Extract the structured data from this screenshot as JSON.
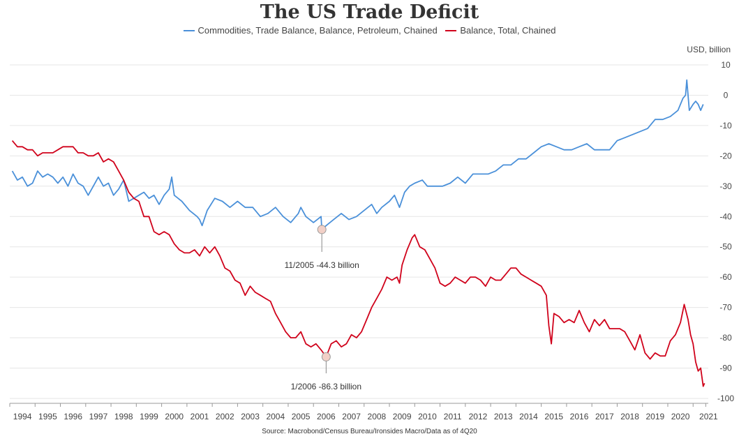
{
  "title": "The US Trade Deficit",
  "unit_label": "USD, billion",
  "source": "Source: Macrobond/Census Bureau/Ironsides Macro/Data as of 4Q20",
  "colors": {
    "petroleum": "#4a90d9",
    "total": "#d0021b",
    "grid": "#e6e6e6",
    "axis": "#999999",
    "marker_fill": "#f2d0c7"
  },
  "chart_data": {
    "type": "line",
    "title": "The US Trade Deficit",
    "ylabel": "USD, billion",
    "ylim": [
      -103,
      10
    ],
    "xlim": [
      1993.5,
      2021.1
    ],
    "grid": true,
    "legend_position": "top-center",
    "y_ticks": [
      "10",
      "0",
      "-10",
      "-20",
      "-30",
      "-40",
      "-50",
      "-60",
      "-70",
      "-80",
      "-90",
      "-100"
    ],
    "x_ticks": [
      "1994",
      "1995",
      "1996",
      "1997",
      "1998",
      "1999",
      "2000",
      "2001",
      "2002",
      "2003",
      "2004",
      "2005",
      "2006",
      "2007",
      "2008",
      "2009",
      "2010",
      "2011",
      "2012",
      "2013",
      "2014",
      "2015",
      "2016",
      "2017",
      "2018",
      "2019",
      "2020",
      "2021"
    ],
    "series": [
      {
        "name": "Commodities, Trade Balance, Balance, Petroleum, Chained",
        "color": "#4a90d9",
        "points": [
          [
            1993.6,
            -25
          ],
          [
            1993.8,
            -28
          ],
          [
            1994.0,
            -27
          ],
          [
            1994.2,
            -30
          ],
          [
            1994.4,
            -29
          ],
          [
            1994.6,
            -25
          ],
          [
            1994.8,
            -27
          ],
          [
            1995.0,
            -26
          ],
          [
            1995.2,
            -27
          ],
          [
            1995.4,
            -29
          ],
          [
            1995.6,
            -27
          ],
          [
            1995.8,
            -30
          ],
          [
            1996.0,
            -26
          ],
          [
            1996.2,
            -29
          ],
          [
            1996.4,
            -30
          ],
          [
            1996.6,
            -33
          ],
          [
            1996.8,
            -30
          ],
          [
            1997.0,
            -27
          ],
          [
            1997.2,
            -30
          ],
          [
            1997.4,
            -29
          ],
          [
            1997.6,
            -33
          ],
          [
            1997.8,
            -31
          ],
          [
            1998.0,
            -28
          ],
          [
            1998.2,
            -35
          ],
          [
            1998.4,
            -34
          ],
          [
            1998.6,
            -33
          ],
          [
            1998.8,
            -32
          ],
          [
            1999.0,
            -34
          ],
          [
            1999.2,
            -33
          ],
          [
            1999.4,
            -36
          ],
          [
            1999.6,
            -33
          ],
          [
            1999.8,
            -31
          ],
          [
            1999.9,
            -27
          ],
          [
            2000.0,
            -33
          ],
          [
            2000.3,
            -35
          ],
          [
            2000.6,
            -38
          ],
          [
            2000.9,
            -40
          ],
          [
            2001.0,
            -41
          ],
          [
            2001.1,
            -43
          ],
          [
            2001.3,
            -38
          ],
          [
            2001.6,
            -34
          ],
          [
            2001.9,
            -35
          ],
          [
            2002.2,
            -37
          ],
          [
            2002.5,
            -35
          ],
          [
            2002.8,
            -37
          ],
          [
            2003.1,
            -37
          ],
          [
            2003.4,
            -40
          ],
          [
            2003.7,
            -39
          ],
          [
            2004.0,
            -37
          ],
          [
            2004.3,
            -40
          ],
          [
            2004.6,
            -42
          ],
          [
            2004.9,
            -39
          ],
          [
            2005.0,
            -37
          ],
          [
            2005.2,
            -40
          ],
          [
            2005.5,
            -42
          ],
          [
            2005.8,
            -40
          ],
          [
            2005.83,
            -44.3
          ],
          [
            2006.0,
            -43
          ],
          [
            2006.3,
            -41
          ],
          [
            2006.6,
            -39
          ],
          [
            2006.9,
            -41
          ],
          [
            2007.2,
            -40
          ],
          [
            2007.5,
            -38
          ],
          [
            2007.8,
            -36
          ],
          [
            2008.0,
            -39
          ],
          [
            2008.2,
            -37
          ],
          [
            2008.5,
            -35
          ],
          [
            2008.7,
            -33
          ],
          [
            2008.9,
            -37
          ],
          [
            2009.1,
            -32
          ],
          [
            2009.3,
            -30
          ],
          [
            2009.5,
            -29
          ],
          [
            2009.8,
            -28
          ],
          [
            2010.0,
            -30
          ],
          [
            2010.3,
            -30
          ],
          [
            2010.6,
            -30
          ],
          [
            2010.9,
            -29
          ],
          [
            2011.2,
            -27
          ],
          [
            2011.5,
            -29
          ],
          [
            2011.8,
            -26
          ],
          [
            2012.1,
            -26
          ],
          [
            2012.4,
            -26
          ],
          [
            2012.7,
            -25
          ],
          [
            2013.0,
            -23
          ],
          [
            2013.3,
            -23
          ],
          [
            2013.6,
            -21
          ],
          [
            2013.9,
            -21
          ],
          [
            2014.2,
            -19
          ],
          [
            2014.5,
            -17
          ],
          [
            2014.8,
            -16
          ],
          [
            2015.1,
            -17
          ],
          [
            2015.4,
            -18
          ],
          [
            2015.7,
            -18
          ],
          [
            2016.0,
            -17
          ],
          [
            2016.3,
            -16
          ],
          [
            2016.6,
            -18
          ],
          [
            2016.9,
            -18
          ],
          [
            2017.2,
            -18
          ],
          [
            2017.5,
            -15
          ],
          [
            2017.8,
            -14
          ],
          [
            2018.1,
            -13
          ],
          [
            2018.4,
            -12
          ],
          [
            2018.7,
            -11
          ],
          [
            2019.0,
            -8
          ],
          [
            2019.3,
            -8
          ],
          [
            2019.6,
            -7
          ],
          [
            2019.9,
            -5
          ],
          [
            2020.0,
            -3
          ],
          [
            2020.1,
            -1
          ],
          [
            2020.2,
            0
          ],
          [
            2020.25,
            5
          ],
          [
            2020.35,
            -5
          ],
          [
            2020.5,
            -3
          ],
          [
            2020.6,
            -2
          ],
          [
            2020.7,
            -3
          ],
          [
            2020.8,
            -5
          ],
          [
            2020.9,
            -3
          ]
        ]
      },
      {
        "name": "Balance, Total, Chained",
        "color": "#d0021b",
        "points": [
          [
            1993.6,
            -15
          ],
          [
            1993.8,
            -17
          ],
          [
            1994.0,
            -17
          ],
          [
            1994.2,
            -18
          ],
          [
            1994.4,
            -18
          ],
          [
            1994.6,
            -20
          ],
          [
            1994.8,
            -19
          ],
          [
            1995.0,
            -19
          ],
          [
            1995.2,
            -19
          ],
          [
            1995.4,
            -18
          ],
          [
            1995.6,
            -17
          ],
          [
            1995.8,
            -17
          ],
          [
            1996.0,
            -17
          ],
          [
            1996.2,
            -19
          ],
          [
            1996.4,
            -19
          ],
          [
            1996.6,
            -20
          ],
          [
            1996.8,
            -20
          ],
          [
            1997.0,
            -19
          ],
          [
            1997.2,
            -22
          ],
          [
            1997.4,
            -21
          ],
          [
            1997.6,
            -22
          ],
          [
            1997.8,
            -25
          ],
          [
            1998.0,
            -28
          ],
          [
            1998.2,
            -32
          ],
          [
            1998.4,
            -34
          ],
          [
            1998.6,
            -35
          ],
          [
            1998.8,
            -40
          ],
          [
            1999.0,
            -40
          ],
          [
            1999.2,
            -45
          ],
          [
            1999.4,
            -46
          ],
          [
            1999.6,
            -45
          ],
          [
            1999.8,
            -46
          ],
          [
            2000.0,
            -49
          ],
          [
            2000.2,
            -51
          ],
          [
            2000.4,
            -52
          ],
          [
            2000.6,
            -52
          ],
          [
            2000.8,
            -51
          ],
          [
            2001.0,
            -53
          ],
          [
            2001.2,
            -50
          ],
          [
            2001.4,
            -52
          ],
          [
            2001.6,
            -50
          ],
          [
            2001.8,
            -53
          ],
          [
            2002.0,
            -57
          ],
          [
            2002.2,
            -58
          ],
          [
            2002.4,
            -61
          ],
          [
            2002.6,
            -62
          ],
          [
            2002.8,
            -66
          ],
          [
            2003.0,
            -63
          ],
          [
            2003.2,
            -65
          ],
          [
            2003.4,
            -66
          ],
          [
            2003.6,
            -67
          ],
          [
            2003.8,
            -68
          ],
          [
            2004.0,
            -72
          ],
          [
            2004.2,
            -75
          ],
          [
            2004.4,
            -78
          ],
          [
            2004.6,
            -80
          ],
          [
            2004.8,
            -80
          ],
          [
            2005.0,
            -78
          ],
          [
            2005.2,
            -82
          ],
          [
            2005.4,
            -83
          ],
          [
            2005.6,
            -82
          ],
          [
            2005.8,
            -84
          ],
          [
            2006.0,
            -86.3
          ],
          [
            2006.2,
            -82
          ],
          [
            2006.4,
            -81
          ],
          [
            2006.6,
            -83
          ],
          [
            2006.8,
            -82
          ],
          [
            2007.0,
            -79
          ],
          [
            2007.2,
            -80
          ],
          [
            2007.4,
            -78
          ],
          [
            2007.6,
            -74
          ],
          [
            2007.8,
            -70
          ],
          [
            2008.0,
            -67
          ],
          [
            2008.2,
            -64
          ],
          [
            2008.4,
            -60
          ],
          [
            2008.6,
            -61
          ],
          [
            2008.8,
            -60
          ],
          [
            2008.9,
            -62
          ],
          [
            2009.0,
            -56
          ],
          [
            2009.2,
            -51
          ],
          [
            2009.4,
            -47
          ],
          [
            2009.5,
            -46
          ],
          [
            2009.7,
            -50
          ],
          [
            2009.9,
            -51
          ],
          [
            2010.1,
            -54
          ],
          [
            2010.3,
            -57
          ],
          [
            2010.5,
            -62
          ],
          [
            2010.7,
            -63
          ],
          [
            2010.9,
            -62
          ],
          [
            2011.1,
            -60
          ],
          [
            2011.3,
            -61
          ],
          [
            2011.5,
            -62
          ],
          [
            2011.7,
            -60
          ],
          [
            2011.9,
            -60
          ],
          [
            2012.1,
            -61
          ],
          [
            2012.3,
            -63
          ],
          [
            2012.5,
            -60
          ],
          [
            2012.7,
            -61
          ],
          [
            2012.9,
            -61
          ],
          [
            2013.1,
            -59
          ],
          [
            2013.3,
            -57
          ],
          [
            2013.5,
            -57
          ],
          [
            2013.7,
            -59
          ],
          [
            2013.9,
            -60
          ],
          [
            2014.1,
            -61
          ],
          [
            2014.3,
            -62
          ],
          [
            2014.5,
            -63
          ],
          [
            2014.7,
            -66
          ],
          [
            2014.8,
            -76
          ],
          [
            2014.9,
            -82
          ],
          [
            2015.0,
            -72
          ],
          [
            2015.2,
            -73
          ],
          [
            2015.4,
            -75
          ],
          [
            2015.6,
            -74
          ],
          [
            2015.8,
            -75
          ],
          [
            2016.0,
            -71
          ],
          [
            2016.2,
            -75
          ],
          [
            2016.4,
            -78
          ],
          [
            2016.6,
            -74
          ],
          [
            2016.8,
            -76
          ],
          [
            2017.0,
            -74
          ],
          [
            2017.2,
            -77
          ],
          [
            2017.4,
            -77
          ],
          [
            2017.6,
            -77
          ],
          [
            2017.8,
            -78
          ],
          [
            2018.0,
            -81
          ],
          [
            2018.2,
            -84
          ],
          [
            2018.4,
            -79
          ],
          [
            2018.6,
            -85
          ],
          [
            2018.8,
            -87
          ],
          [
            2019.0,
            -85
          ],
          [
            2019.2,
            -86
          ],
          [
            2019.4,
            -86
          ],
          [
            2019.6,
            -81
          ],
          [
            2019.8,
            -79
          ],
          [
            2019.9,
            -77
          ],
          [
            2020.0,
            -75
          ],
          [
            2020.15,
            -69
          ],
          [
            2020.3,
            -74
          ],
          [
            2020.4,
            -79
          ],
          [
            2020.5,
            -82
          ],
          [
            2020.6,
            -88
          ],
          [
            2020.7,
            -91
          ],
          [
            2020.8,
            -90
          ],
          [
            2020.9,
            -96
          ],
          [
            2020.95,
            -95
          ]
        ]
      }
    ],
    "annotations": [
      {
        "text": "11/2005 -44.3 billion",
        "series": 0,
        "x": 2005.83,
        "y": -44.3,
        "label_position": "below"
      },
      {
        "text": "1/2006 -86.3 billion",
        "series": 1,
        "x": 2006.0,
        "y": -86.3,
        "label_position": "below"
      }
    ]
  }
}
